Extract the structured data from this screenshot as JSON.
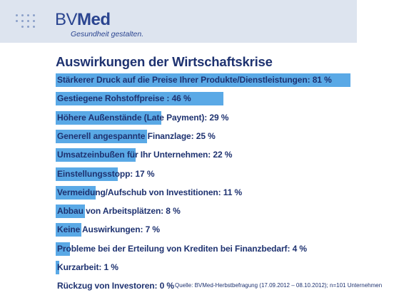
{
  "brand": {
    "name_light": "BV",
    "name_bold": "Med",
    "tagline": "Gesundheit gestalten."
  },
  "colors": {
    "bar": "#5aa9e6",
    "text": "#1e3270",
    "header_bg": "#dde4ef"
  },
  "chart_data": {
    "type": "bar",
    "orientation": "horizontal",
    "title": "Auswirkungen der Wirtschaftskrise",
    "xlim": [
      0,
      100
    ],
    "categories": [
      "Stärkerer Druck auf die Preise Ihrer Produkte/Dienstleistungen: 81 %",
      "Gestiegene Rohstoffpreise : 46 %",
      "Höhere Außenstände (Late Payment): 29 %",
      "Generell angespannte Finanzlage: 25 %",
      "Umsatzeinbußen für Ihr Unternehmen: 22 %",
      "Einstellungsstopp: 17 %",
      "Vermeidung/Aufschub von Investitionen: 11 %",
      "Abbau von Arbeitsplätzen: 8 %",
      "Keine Auswirkungen: 7 %",
      "Probleme bei der Erteilung von Krediten bei Finanzbedarf: 4 %",
      "Kurzarbeit: 1 %",
      "Rückzug von Investoren: 0 %"
    ],
    "values": [
      81,
      46,
      29,
      25,
      22,
      17,
      11,
      8,
      7,
      4,
      1,
      0
    ],
    "source": "Quelle: BVMed-Herbstbefragung (17.09.2012 – 08.10.2012); n=101 Unternehmen"
  }
}
